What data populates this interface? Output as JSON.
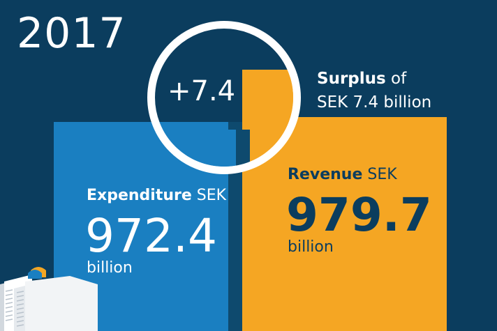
{
  "year": "2017",
  "surplus": {
    "delta": "+7.4",
    "title_bold": "Surplus",
    "title_rest": " of",
    "line2": "SEK 7.4 billion"
  },
  "expenditure": {
    "label_bold": "Expenditure",
    "label_rest": " SEK",
    "value": "972.4",
    "unit": "billion"
  },
  "revenue": {
    "label_bold": "Revenue",
    "label_rest": " SEK",
    "value": "979.7",
    "unit": "billion"
  },
  "colors": {
    "background": "#0b3d5e",
    "revenue": "#f5a623",
    "expenditure": "#1a7fc1",
    "ring": "#ffffff"
  }
}
